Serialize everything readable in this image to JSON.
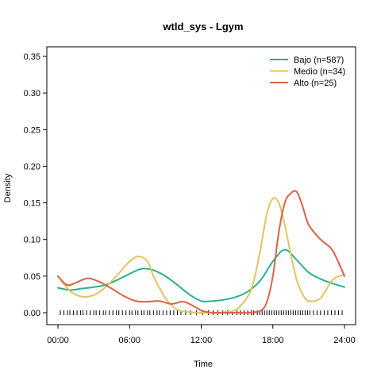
{
  "chart_data": {
    "type": "line",
    "title": "wtld_sys - Lgym",
    "xlabel": "Time",
    "ylabel": "Density",
    "xlim": [
      0,
      24
    ],
    "ylim": [
      0,
      0.35
    ],
    "x_ticks": [
      0,
      6,
      12,
      18,
      24
    ],
    "x_tick_labels": [
      "00:00",
      "06:00",
      "12:00",
      "18:00",
      "24:00"
    ],
    "y_ticks": [
      0.0,
      0.05,
      0.1,
      0.15,
      0.2,
      0.25,
      0.3,
      0.35
    ],
    "y_tick_labels": [
      "0.00",
      "0.05",
      "0.10",
      "0.15",
      "0.20",
      "0.25",
      "0.30",
      "0.35"
    ],
    "grid": false,
    "legend_position": "top-right",
    "series": [
      {
        "name": "Bajo (n=587)",
        "color": "#2ab090",
        "x": [
          0,
          1,
          2,
          3,
          4,
          5,
          6,
          7,
          8,
          9,
          10,
          11,
          12,
          13,
          14,
          15,
          16,
          17,
          18,
          19,
          20,
          21,
          22,
          23,
          24
        ],
        "y": [
          0.034,
          0.031,
          0.033,
          0.035,
          0.038,
          0.045,
          0.053,
          0.06,
          0.058,
          0.05,
          0.038,
          0.025,
          0.016,
          0.016,
          0.018,
          0.022,
          0.03,
          0.045,
          0.07,
          0.086,
          0.072,
          0.055,
          0.046,
          0.04,
          0.035
        ]
      },
      {
        "name": "Medio (n=34)",
        "color": "#e8c060",
        "x": [
          0,
          1,
          2,
          3,
          4,
          5,
          6,
          6.75,
          7.5,
          8,
          9,
          10,
          11,
          12,
          13,
          14,
          15,
          16,
          16.5,
          17,
          17.5,
          18,
          18.5,
          19,
          19.5,
          20,
          20.5,
          21,
          22,
          23,
          24
        ],
        "y": [
          0.05,
          0.03,
          0.022,
          0.024,
          0.035,
          0.052,
          0.07,
          0.077,
          0.07,
          0.05,
          0.02,
          0.004,
          0.001,
          0.0,
          0.0,
          0.001,
          0.005,
          0.025,
          0.05,
          0.09,
          0.135,
          0.156,
          0.15,
          0.12,
          0.08,
          0.045,
          0.025,
          0.016,
          0.02,
          0.045,
          0.052
        ]
      },
      {
        "name": "Alto (n=25)",
        "color": "#d9634a",
        "x": [
          0,
          0.75,
          1.5,
          2.5,
          3.5,
          4.5,
          5.5,
          6.5,
          7.5,
          8.5,
          9.5,
          10.5,
          11.5,
          12,
          13,
          14,
          15,
          16,
          17,
          17.5,
          18,
          18.5,
          19,
          19.5,
          20,
          20.5,
          21,
          22,
          23,
          24
        ],
        "y": [
          0.05,
          0.038,
          0.041,
          0.047,
          0.042,
          0.033,
          0.023,
          0.016,
          0.015,
          0.016,
          0.012,
          0.015,
          0.008,
          0.003,
          0.0,
          0.0,
          0.0,
          0.0,
          0.003,
          0.015,
          0.05,
          0.11,
          0.15,
          0.163,
          0.165,
          0.145,
          0.12,
          0.1,
          0.085,
          0.05
        ]
      }
    ],
    "rug_x": [
      0.2,
      0.5,
      0.8,
      1.0,
      1.3,
      1.6,
      1.9,
      2.1,
      2.4,
      2.7,
      3.0,
      3.2,
      3.5,
      3.8,
      4.0,
      4.3,
      4.6,
      4.9,
      5.1,
      5.4,
      5.7,
      6.0,
      6.2,
      6.5,
      6.7,
      7.0,
      7.2,
      7.5,
      7.7,
      8.0,
      8.3,
      8.5,
      8.8,
      9.1,
      9.4,
      9.7,
      10.0,
      10.3,
      10.7,
      11.1,
      11.6,
      12.1,
      12.6,
      13.0,
      13.4,
      13.8,
      14.2,
      14.6,
      15.0,
      15.3,
      15.6,
      15.9,
      16.2,
      16.4,
      16.7,
      16.9,
      17.1,
      17.3,
      17.5,
      17.7,
      17.9,
      18.1,
      18.3,
      18.5,
      18.7,
      18.9,
      19.1,
      19.3,
      19.5,
      19.7,
      19.9,
      20.1,
      20.3,
      20.5,
      20.7,
      20.9,
      21.1,
      21.4,
      21.7,
      22.0,
      22.3,
      22.6,
      22.9,
      23.2,
      23.5,
      23.8
    ]
  }
}
